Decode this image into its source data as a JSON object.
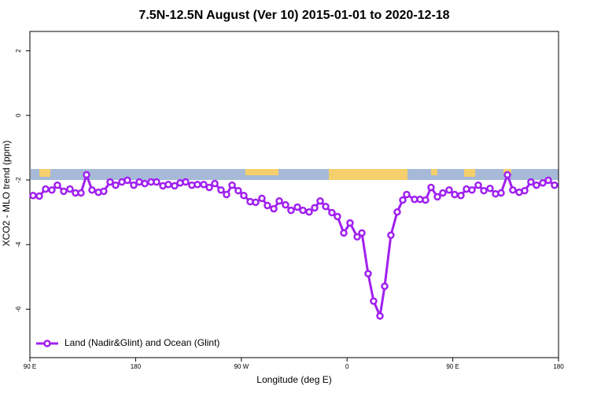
{
  "chart_data": {
    "type": "line",
    "title": "7.5N-12.5N August (Ver 10)   2015-01-01 to 2020-12-18",
    "x_label": "Longitude (deg E)",
    "y_label": "XCO2 - MLO trend (ppm)",
    "xlim": [
      -270,
      180
    ],
    "xticks": [
      {
        "value": -270,
        "label": "90 E"
      },
      {
        "value": -180,
        "label": "180"
      },
      {
        "value": -90,
        "label": "90 W"
      },
      0,
      {
        "value": 90,
        "label": "90 E"
      },
      180
    ],
    "ylim": [
      -7.5,
      2.6
    ],
    "yticks": [
      -6,
      -4,
      -2,
      0,
      2
    ],
    "legend": "bottom-left",
    "x": [
      -267.3,
      -262.0,
      -256.6,
      -251.3,
      -246.6,
      -241.2,
      -235.9,
      -231.2,
      -226.5,
      -221.8,
      -217.1,
      -211.7,
      -207.1,
      -201.7,
      -197.0,
      -191.7,
      -187.0,
      -181.6,
      -176.9,
      -172.2,
      -166.9,
      -162.2,
      -156.8,
      -152.2,
      -146.8,
      -142.1,
      -137.4,
      -132.1,
      -127.4,
      -122.0,
      -117.3,
      -112.6,
      -107.3,
      -102.6,
      -97.9,
      -92.6,
      -87.9,
      -82.5,
      -77.8,
      -72.5,
      -67.8,
      -62.4,
      -57.7,
      -52.4,
      -47.7,
      -42.3,
      -37.6,
      -32.3,
      -27.6,
      -22.9,
      -18.2,
      -12.9,
      -8.2,
      -2.8,
      2.5,
      8.6,
      12.6,
      17.9,
      22.6,
      28.0,
      32.0,
      37.3,
      42.7,
      47.4,
      50.7,
      57.4,
      62.1,
      66.8,
      71.5,
      76.9,
      81.5,
      86.9,
      91.6,
      96.9,
      101.6,
      106.3,
      111.7,
      116.4,
      121.7,
      126.4,
      131.1,
      136.5,
      141.1,
      146.5,
      151.2,
      156.5,
      161.2,
      166.6,
      171.3,
      176.6
    ],
    "series": [
      {
        "name": "Land (Nadir&Glint) and Ocean (Glint)",
        "color": "#a020f0",
        "values": [
          -2.48,
          -2.5,
          -2.28,
          -2.31,
          -2.16,
          -2.35,
          -2.28,
          -2.4,
          -2.4,
          -1.84,
          -2.31,
          -2.38,
          -2.35,
          -2.06,
          -2.16,
          -2.06,
          -2.01,
          -2.16,
          -2.06,
          -2.11,
          -2.06,
          -2.06,
          -2.18,
          -2.14,
          -2.18,
          -2.09,
          -2.06,
          -2.16,
          -2.14,
          -2.14,
          -2.23,
          -2.11,
          -2.31,
          -2.45,
          -2.16,
          -2.33,
          -2.48,
          -2.67,
          -2.69,
          -2.57,
          -2.79,
          -2.89,
          -2.65,
          -2.77,
          -2.94,
          -2.84,
          -2.94,
          -2.99,
          -2.86,
          -2.65,
          -2.82,
          -3.01,
          -3.13,
          -3.64,
          -3.33,
          -3.76,
          -3.64,
          -4.9,
          -5.75,
          -6.21,
          -5.29,
          -3.71,
          -2.99,
          -2.62,
          -2.45,
          -2.6,
          -2.6,
          -2.62,
          -2.23,
          -2.52,
          -2.4,
          -2.31,
          -2.45,
          -2.48,
          -2.28,
          -2.31,
          -2.16,
          -2.33,
          -2.26,
          -2.43,
          -2.4,
          -1.84,
          -2.31,
          -2.38,
          -2.33,
          -2.06,
          -2.16,
          -2.09,
          -2.01,
          -2.16
        ]
      }
    ]
  }
}
